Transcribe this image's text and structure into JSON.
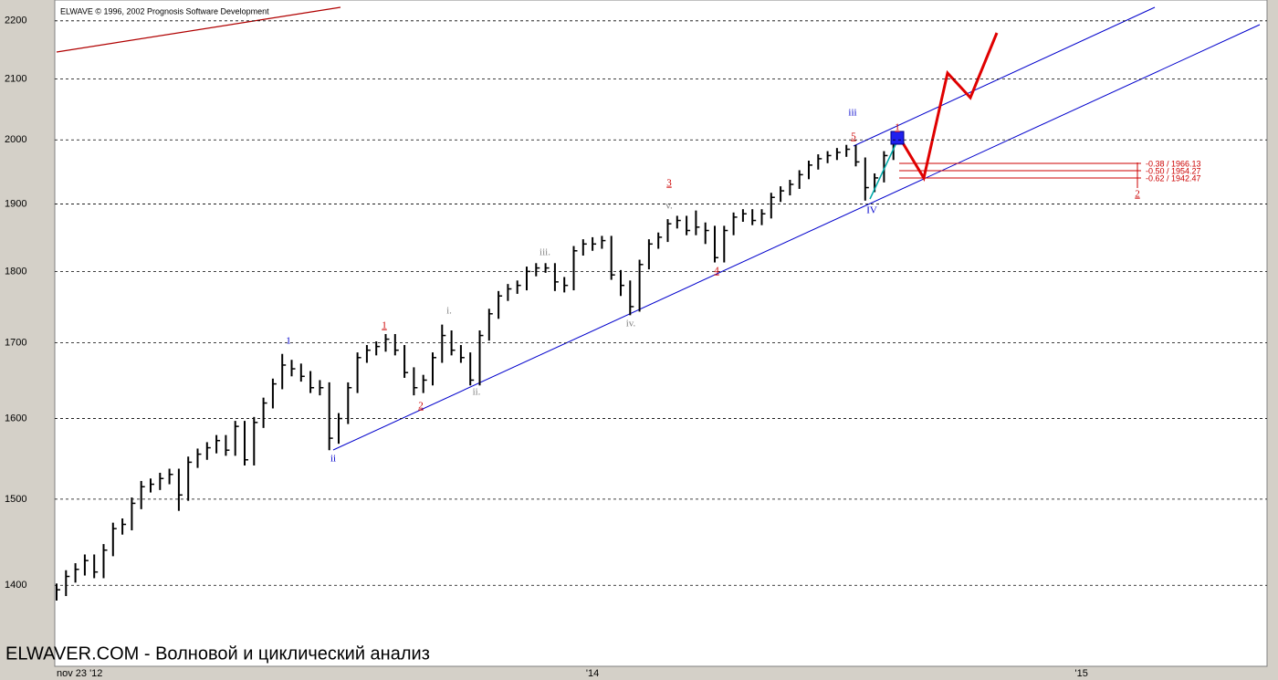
{
  "chart_data": {
    "type": "ohlc",
    "title": "ELWAVE © 1996, 2002 Prognosis Software Development",
    "footer": "ELWAVER.COM - Волновой и циклический анализ",
    "log_scale": true,
    "grid": true,
    "color": "#000000",
    "ylim": [
      1314,
      2237
    ],
    "yticks": [
      1400,
      1500,
      1600,
      1700,
      1800,
      1900,
      2000,
      2100,
      2200
    ],
    "categories": [
      "nov 23 '12",
      null,
      null,
      null,
      null,
      null,
      null,
      null,
      null,
      null,
      null,
      null,
      null,
      null,
      null,
      null,
      null,
      null,
      null,
      null,
      null,
      null,
      null,
      null,
      null,
      null,
      null,
      null,
      null,
      null,
      null,
      null,
      null,
      null,
      null,
      null,
      null,
      null,
      null,
      null,
      null,
      null,
      null,
      null,
      null,
      null,
      null,
      null,
      null,
      null,
      null,
      null,
      null,
      null,
      null,
      null,
      null,
      "'14",
      null,
      null,
      null,
      null,
      null,
      null,
      null,
      null,
      null,
      null,
      null,
      null,
      null,
      null,
      null,
      null,
      null,
      null,
      null,
      null,
      null,
      null,
      null,
      null,
      null,
      null,
      null,
      null,
      null,
      null,
      null,
      null,
      null,
      null,
      null,
      null,
      null,
      null,
      null,
      null,
      null,
      null,
      null,
      null,
      null,
      null,
      null,
      null,
      null,
      null,
      null,
      "'15",
      null,
      null,
      null,
      null,
      null,
      null,
      null,
      null,
      null,
      null,
      null,
      null,
      null,
      null,
      null,
      null,
      null,
      null,
      null,
      null
    ],
    "high": [
      1402,
      1417,
      1425,
      1435,
      1435,
      1447,
      1472,
      1477,
      1502,
      1522,
      1525,
      1532,
      1537,
      1537,
      1552,
      1562,
      1570,
      1579,
      1579,
      1597,
      1597,
      1602,
      1627,
      1652,
      1685,
      1677,
      1672,
      1662,
      1650,
      1647,
      1607,
      1647,
      1687,
      1697,
      1702,
      1712,
      1712,
      1697,
      1667,
      1657,
      1687,
      1725,
      1717,
      1697,
      1687,
      1717,
      1747,
      1772,
      1782,
      1787,
      1807,
      1812,
      1812,
      1812,
      1792,
      1837,
      1847,
      1850,
      1852,
      1852,
      1802,
      1787,
      1817,
      1847,
      1857,
      1877,
      1882,
      1882,
      1890,
      1872,
      1867,
      1867,
      1887,
      1892,
      1892,
      1892,
      1917,
      1927,
      1937,
      1952,
      1967,
      1977,
      1982,
      1987,
      1992,
      1992,
      1972,
      1947,
      1982,
      2012,
      null,
      null,
      null,
      null,
      null,
      null,
      null,
      null,
      null,
      null,
      null,
      null,
      null,
      null,
      null,
      null,
      null,
      null,
      null,
      null,
      null,
      null,
      null,
      null,
      null,
      null,
      null,
      null,
      null,
      null,
      null,
      null,
      null,
      null,
      null,
      null,
      null,
      null,
      null,
      null
    ],
    "low": [
      1383,
      1388,
      1403,
      1411,
      1408,
      1408,
      1433,
      1458,
      1463,
      1488,
      1508,
      1511,
      1518,
      1486,
      1498,
      1538,
      1548,
      1556,
      1553,
      1553,
      1541,
      1541,
      1588,
      1613,
      1638,
      1655,
      1648,
      1633,
      1630,
      1560,
      1568,
      1593,
      1633,
      1673,
      1683,
      1688,
      1683,
      1653,
      1630,
      1633,
      1643,
      1673,
      1683,
      1673,
      1643,
      1643,
      1703,
      1733,
      1758,
      1768,
      1773,
      1793,
      1798,
      1772,
      1770,
      1773,
      1823,
      1830,
      1833,
      1788,
      1765,
      1738,
      1743,
      1803,
      1833,
      1843,
      1863,
      1853,
      1853,
      1840,
      1813,
      1813,
      1853,
      1873,
      1868,
      1868,
      1878,
      1903,
      1913,
      1923,
      1938,
      1953,
      1963,
      1968,
      1973,
      1958,
      1905,
      1918,
      1933,
      1968,
      null,
      null,
      null,
      null,
      null,
      null,
      null,
      null,
      null,
      null,
      null,
      null,
      null,
      null,
      null,
      null,
      null,
      null,
      null,
      null,
      null,
      null,
      null,
      null,
      null,
      null,
      null,
      null,
      null,
      null,
      null,
      null,
      null,
      null,
      null,
      null,
      null,
      null,
      null,
      null
    ],
    "close": [
      1395,
      1410,
      1418,
      1428,
      1415,
      1440,
      1465,
      1470,
      1495,
      1515,
      1518,
      1525,
      1530,
      1505,
      1545,
      1555,
      1563,
      1572,
      1560,
      1590,
      1548,
      1595,
      1620,
      1645,
      1670,
      1665,
      1655,
      1640,
      1640,
      1575,
      1600,
      1640,
      1680,
      1690,
      1695,
      1705,
      1690,
      1660,
      1640,
      1650,
      1680,
      1710,
      1690,
      1680,
      1650,
      1710,
      1740,
      1765,
      1775,
      1780,
      1800,
      1805,
      1805,
      1785,
      1780,
      1830,
      1840,
      1840,
      1845,
      1795,
      1780,
      1750,
      1810,
      1840,
      1850,
      1870,
      1875,
      1860,
      1865,
      1860,
      1820,
      1860,
      1880,
      1885,
      1875,
      1885,
      1910,
      1920,
      1930,
      1945,
      1960,
      1970,
      1975,
      1980,
      1985,
      1965,
      1925,
      1940,
      1975,
      2000,
      null,
      null,
      null,
      null,
      null,
      null,
      null,
      null,
      null,
      null,
      null,
      null,
      null,
      null,
      null,
      null,
      null,
      null,
      null,
      null,
      null,
      null,
      null,
      null,
      null,
      null,
      null,
      null,
      null,
      null,
      null,
      null,
      null,
      null,
      null,
      null,
      null,
      null,
      null,
      null
    ],
    "annotations": [
      {
        "text": "1",
        "color": "#0000cc"
      },
      {
        "text": "ii",
        "color": "#0000cc"
      },
      {
        "text": "1",
        "color": "#cc0000"
      },
      {
        "text": "2",
        "color": "#cc0000"
      },
      {
        "text": "i.",
        "color": "#808080"
      },
      {
        "text": "ii.",
        "color": "#808080"
      },
      {
        "text": "iii.",
        "color": "#808080"
      },
      {
        "text": "3",
        "color": "#cc0000"
      },
      {
        "text": "v.",
        "color": "#808080"
      },
      {
        "text": "iv.",
        "color": "#808080"
      },
      {
        "text": "4",
        "color": "#cc0000"
      },
      {
        "text": "iii",
        "color": "#0000cc"
      },
      {
        "text": "5",
        "color": "#cc0000"
      },
      {
        "text": "IV",
        "color": "#0000cc"
      },
      {
        "text": "1",
        "color": "#cc0000"
      },
      {
        "text": "2",
        "color": "#cc0000"
      }
    ],
    "fib_levels": [
      "-0.38 / 1966.13",
      "-0.50 / 1954.27",
      "-0.62 / 1942.47"
    ]
  }
}
